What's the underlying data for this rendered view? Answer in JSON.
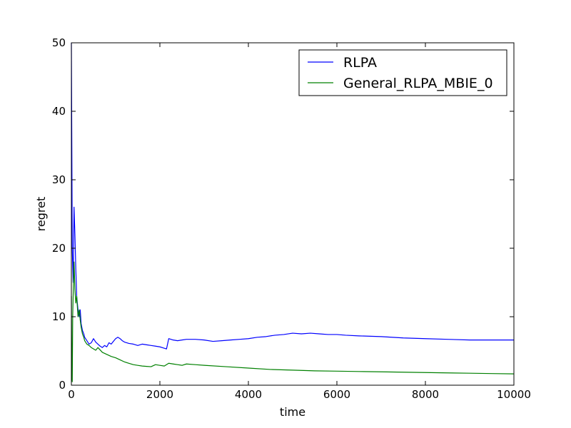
{
  "chart_data": {
    "type": "line",
    "title": "",
    "xlabel": "time",
    "ylabel": "regret",
    "xlim": [
      0,
      10000
    ],
    "ylim": [
      0,
      50
    ],
    "xticks": [
      0,
      2000,
      4000,
      6000,
      8000,
      10000
    ],
    "yticks": [
      0,
      10,
      20,
      30,
      40,
      50
    ],
    "xtick_labels": [
      "0",
      "2000",
      "4000",
      "6000",
      "8000",
      "10000"
    ],
    "ytick_labels": [
      "0",
      "10",
      "20",
      "30",
      "40",
      "50"
    ],
    "grid": false,
    "legend_position": "top-right",
    "series": [
      {
        "name": "RLPA",
        "color": "#0000ff",
        "x": [
          0,
          10,
          20,
          40,
          60,
          80,
          100,
          120,
          150,
          180,
          200,
          220,
          250,
          280,
          300,
          350,
          400,
          450,
          500,
          550,
          600,
          650,
          700,
          750,
          800,
          850,
          900,
          950,
          1000,
          1050,
          1100,
          1150,
          1200,
          1300,
          1400,
          1500,
          1600,
          1700,
          1800,
          1900,
          2000,
          2100,
          2150,
          2200,
          2300,
          2400,
          2500,
          2600,
          2800,
          3000,
          3200,
          3400,
          3600,
          3800,
          4000,
          4200,
          4400,
          4600,
          4800,
          5000,
          5200,
          5400,
          5600,
          5800,
          6000,
          6200,
          6500,
          7000,
          7500,
          8000,
          8500,
          9000,
          9500,
          10000
        ],
        "values": [
          50,
          35,
          20,
          15,
          26,
          22,
          17,
          13,
          11,
          10,
          11,
          9,
          8,
          7.5,
          7,
          6.5,
          6,
          6.2,
          6.8,
          6.3,
          6.0,
          5.7,
          5.5,
          5.8,
          5.6,
          6.2,
          6.0,
          6.4,
          6.8,
          7.0,
          6.8,
          6.5,
          6.3,
          6.1,
          6.0,
          5.8,
          6.0,
          5.9,
          5.8,
          5.7,
          5.6,
          5.4,
          5.3,
          6.8,
          6.6,
          6.5,
          6.6,
          6.7,
          6.7,
          6.6,
          6.4,
          6.5,
          6.6,
          6.7,
          6.8,
          7.0,
          7.1,
          7.3,
          7.4,
          7.6,
          7.5,
          7.6,
          7.5,
          7.4,
          7.4,
          7.3,
          7.2,
          7.1,
          6.9,
          6.8,
          6.7,
          6.6,
          6.6,
          6.6
        ]
      },
      {
        "name": "General_RLPA_MBIE_0",
        "color": "#008000",
        "x": [
          0,
          10,
          20,
          30,
          40,
          60,
          80,
          100,
          120,
          150,
          180,
          200,
          220,
          250,
          280,
          300,
          350,
          400,
          450,
          500,
          550,
          600,
          700,
          800,
          900,
          1000,
          1100,
          1200,
          1300,
          1400,
          1500,
          1600,
          1700,
          1800,
          1900,
          2000,
          2100,
          2200,
          2300,
          2400,
          2500,
          2600,
          2800,
          3000,
          3500,
          4000,
          4500,
          5000,
          5500,
          6000,
          6500,
          7000,
          7500,
          8000,
          8500,
          9000,
          9500,
          10000
        ],
        "values": [
          13,
          2,
          0.5,
          10,
          13,
          18,
          14,
          12,
          13,
          10,
          11,
          9.5,
          8.5,
          7.5,
          7,
          6.5,
          6,
          5.8,
          5.5,
          5.3,
          5.1,
          5.5,
          4.8,
          4.5,
          4.2,
          4.0,
          3.7,
          3.4,
          3.2,
          3.0,
          2.9,
          2.8,
          2.75,
          2.7,
          3.0,
          2.9,
          2.8,
          3.2,
          3.1,
          3.0,
          2.9,
          3.1,
          3.0,
          2.9,
          2.7,
          2.5,
          2.3,
          2.2,
          2.1,
          2.05,
          2.0,
          1.95,
          1.9,
          1.85,
          1.8,
          1.75,
          1.7,
          1.65
        ]
      }
    ]
  }
}
